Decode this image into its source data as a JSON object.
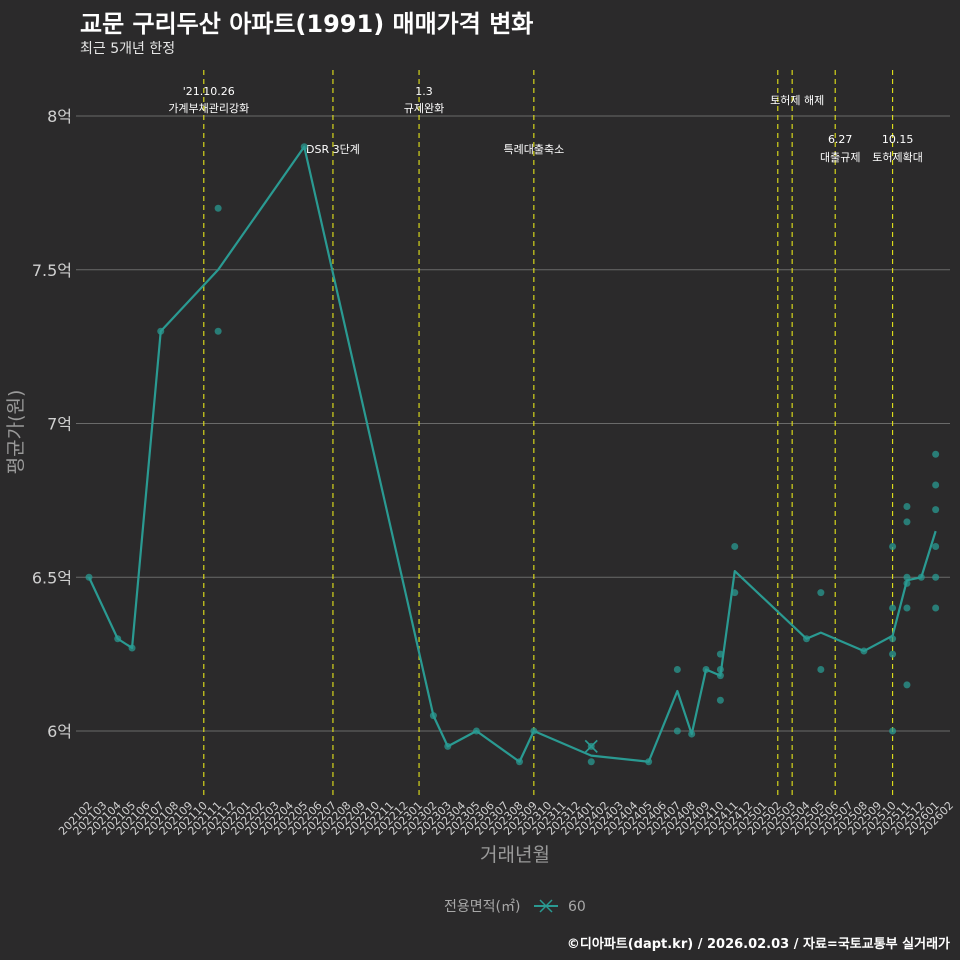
{
  "chart_data": {
    "type": "line",
    "title": "교문 구리두산 아파트(1991) 매매가격 변화",
    "subtitle": "최근 5개년 한정",
    "xlabel": "거래년월",
    "ylabel": "평균가(원)",
    "ylim": [
      5.8,
      8.15
    ],
    "yticks": [
      {
        "value": 6,
        "label": "6억"
      },
      {
        "value": 6.5,
        "label": "6.5억"
      },
      {
        "value": 7,
        "label": "7억"
      },
      {
        "value": 7.5,
        "label": "7.5억"
      },
      {
        "value": 8,
        "label": "8억"
      }
    ],
    "x_months": [
      "202102",
      "202103",
      "202104",
      "202105",
      "202106",
      "202107",
      "202108",
      "202109",
      "202110",
      "202111",
      "202112",
      "202201",
      "202202",
      "202203",
      "202204",
      "202205",
      "202206",
      "202207",
      "202208",
      "202209",
      "202210",
      "202211",
      "202212",
      "202301",
      "202302",
      "202303",
      "202304",
      "202305",
      "202306",
      "202307",
      "202308",
      "202309",
      "202310",
      "202311",
      "202312",
      "202401",
      "202402",
      "202403",
      "202404",
      "202405",
      "202406",
      "202407",
      "202408",
      "202409",
      "202410",
      "202411",
      "202412",
      "202501",
      "202502",
      "202503",
      "202504",
      "202505",
      "202506",
      "202507",
      "202508",
      "202509",
      "202510",
      "202511",
      "202512",
      "202601",
      "202602"
    ],
    "series": [
      {
        "name": "60",
        "color": "#2a9a92",
        "line": [
          {
            "x": "202102",
            "y": 6.5
          },
          {
            "x": "202104",
            "y": 6.3
          },
          {
            "x": "202105",
            "y": 6.27
          },
          {
            "x": "202107",
            "y": 7.3
          },
          {
            "x": "202111",
            "y": 7.5
          },
          {
            "x": "202205",
            "y": 7.9
          },
          {
            "x": "202302",
            "y": 6.05
          },
          {
            "x": "202303",
            "y": 5.95
          },
          {
            "x": "202305",
            "y": 6.0
          },
          {
            "x": "202308",
            "y": 5.9
          },
          {
            "x": "202309",
            "y": 6.0
          },
          {
            "x": "202401",
            "y": 5.92
          },
          {
            "x": "202405",
            "y": 5.9
          },
          {
            "x": "202407",
            "y": 6.13
          },
          {
            "x": "202408",
            "y": 5.99
          },
          {
            "x": "202409",
            "y": 6.2
          },
          {
            "x": "202410",
            "y": 6.18
          },
          {
            "x": "202411",
            "y": 6.52
          },
          {
            "x": "202504",
            "y": 6.3
          },
          {
            "x": "202505",
            "y": 6.32
          },
          {
            "x": "202508",
            "y": 6.26
          },
          {
            "x": "202510",
            "y": 6.31
          },
          {
            "x": "202511",
            "y": 6.49
          },
          {
            "x": "202512",
            "y": 6.5
          },
          {
            "x": "202601",
            "y": 6.65
          }
        ],
        "points": [
          {
            "x": "202102",
            "y": 6.5
          },
          {
            "x": "202104",
            "y": 6.3
          },
          {
            "x": "202105",
            "y": 6.27
          },
          {
            "x": "202107",
            "y": 7.3
          },
          {
            "x": "202111",
            "y": 7.7
          },
          {
            "x": "202111",
            "y": 7.3
          },
          {
            "x": "202205",
            "y": 7.9
          },
          {
            "x": "202302",
            "y": 6.05
          },
          {
            "x": "202303",
            "y": 5.95
          },
          {
            "x": "202305",
            "y": 6.0
          },
          {
            "x": "202308",
            "y": 5.9
          },
          {
            "x": "202309",
            "y": 6.0
          },
          {
            "x": "202401",
            "y": 5.95
          },
          {
            "x": "202401",
            "y": 5.9
          },
          {
            "x": "202405",
            "y": 5.9
          },
          {
            "x": "202407",
            "y": 6.2
          },
          {
            "x": "202407",
            "y": 6.0
          },
          {
            "x": "202408",
            "y": 5.99
          },
          {
            "x": "202409",
            "y": 6.2
          },
          {
            "x": "202410",
            "y": 6.25
          },
          {
            "x": "202410",
            "y": 6.2
          },
          {
            "x": "202410",
            "y": 6.18
          },
          {
            "x": "202410",
            "y": 6.1
          },
          {
            "x": "202411",
            "y": 6.6
          },
          {
            "x": "202411",
            "y": 6.45
          },
          {
            "x": "202504",
            "y": 6.3
          },
          {
            "x": "202505",
            "y": 6.45
          },
          {
            "x": "202505",
            "y": 6.2
          },
          {
            "x": "202508",
            "y": 6.26
          },
          {
            "x": "202510",
            "y": 6.6
          },
          {
            "x": "202510",
            "y": 6.4
          },
          {
            "x": "202510",
            "y": 6.3
          },
          {
            "x": "202510",
            "y": 6.25
          },
          {
            "x": "202510",
            "y": 6.0
          },
          {
            "x": "202511",
            "y": 6.73
          },
          {
            "x": "202511",
            "y": 6.68
          },
          {
            "x": "202511",
            "y": 6.5
          },
          {
            "x": "202511",
            "y": 6.48
          },
          {
            "x": "202511",
            "y": 6.4
          },
          {
            "x": "202511",
            "y": 6.15
          },
          {
            "x": "202512",
            "y": 6.5
          },
          {
            "x": "202601",
            "y": 6.9
          },
          {
            "x": "202601",
            "y": 6.8
          },
          {
            "x": "202601",
            "y": 6.72
          },
          {
            "x": "202601",
            "y": 6.6
          },
          {
            "x": "202601",
            "y": 6.5
          },
          {
            "x": "202601",
            "y": 6.4
          }
        ],
        "special_marker": {
          "x": "202401",
          "y": 5.95
        }
      }
    ],
    "event_lines": [
      {
        "x": "202110",
        "labels": [
          "'21.10.26",
          "가계부채관리강화"
        ],
        "level": "upper"
      },
      {
        "x": "202207",
        "labels": [
          "DSR 3단계"
        ],
        "level": "mid"
      },
      {
        "x": "202301",
        "labels": [
          "1.3",
          "규제완화"
        ],
        "level": "upper"
      },
      {
        "x": "202309",
        "labels": [
          "특례대출축소"
        ],
        "level": "mid"
      },
      {
        "x": "202502",
        "labels": [],
        "level": "upper"
      },
      {
        "x": "202503",
        "labels": [
          "토허제 해제"
        ],
        "level": "top"
      },
      {
        "x": "202506",
        "labels": [
          "6.27",
          "대출규제"
        ],
        "level": "mid"
      },
      {
        "x": "202510",
        "labels": [
          "10.15",
          "토허제확대"
        ],
        "level": "mid"
      }
    ],
    "legend": {
      "title": "전용면적(㎡)",
      "items": [
        {
          "name": "60",
          "color": "#2a9a92"
        }
      ],
      "position": "bottom"
    },
    "caption": "©디아파트(dapt.kr) / 2026.02.03 / 자료=국토교통부 실거래가"
  }
}
